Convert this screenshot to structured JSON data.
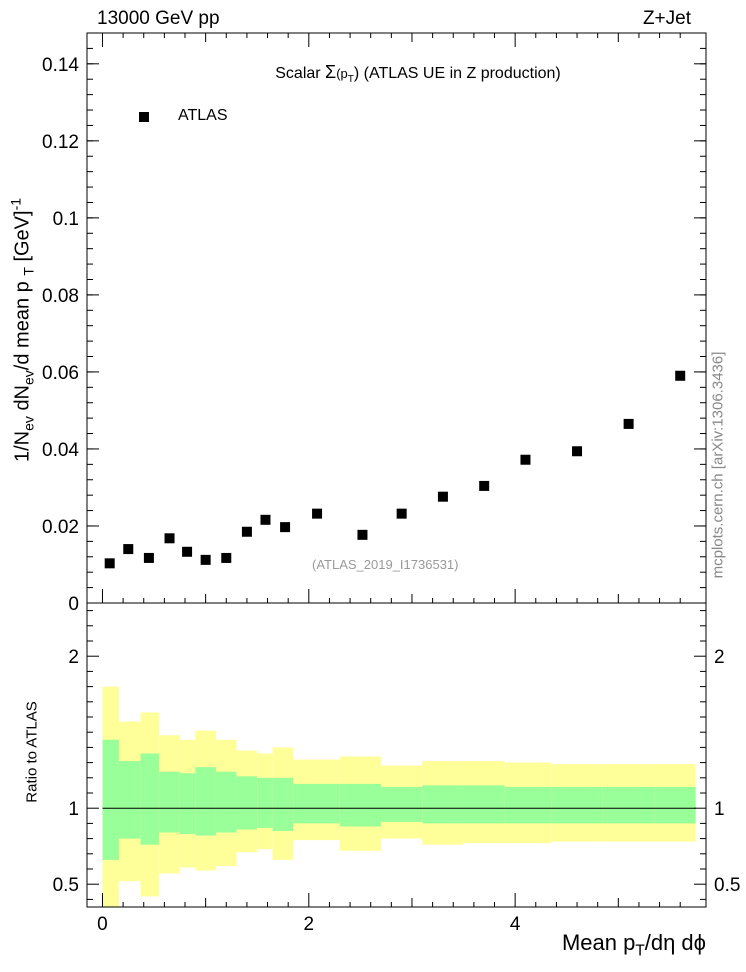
{
  "header": {
    "left": "13000 GeV pp",
    "right": "Z+Jet"
  },
  "legend": {
    "label": "ATLAS",
    "marker": "filled-square"
  },
  "watermark": "(ATLAS_2019_I1736531)",
  "side_credit": "mcplots.cern.ch [arXiv:1306.3436]",
  "colors": {
    "inner_band": "#99ff99",
    "outer_band": "#ffff99",
    "marker": "#000000"
  },
  "chart_data": [
    {
      "type": "scatter",
      "title": "Scalar Σ(pT) (ATLAS UE in Z production)",
      "title_parts": {
        "pre": "Scalar ",
        "sigma": "Σ",
        "p": "(p",
        "sub": "T",
        "post": ") (ATLAS UE in Z production)"
      },
      "xlabel": "Mean pT/dη dϕ",
      "ylabel": "1/Nev dNev/d mean pT [GeV]-1",
      "xlim": [
        -0.15,
        5.85
      ],
      "ylim": [
        0,
        0.148
      ],
      "y_ticks": [
        0,
        0.02,
        0.04,
        0.06,
        0.08,
        0.1,
        0.12,
        0.14
      ],
      "y_tick_labels": [
        "0",
        "0.02",
        "0.04",
        "0.06",
        "0.08",
        "0.1",
        "0.12",
        "0.14"
      ],
      "series": [
        {
          "name": "ATLAS",
          "x": [
            0.07,
            0.25,
            0.45,
            0.65,
            0.82,
            1.0,
            1.2,
            1.4,
            1.58,
            1.77,
            2.08,
            2.52,
            2.9,
            3.3,
            3.7,
            4.1,
            4.6,
            5.1,
            5.6
          ],
          "y": [
            0.0103,
            0.014,
            0.0117,
            0.0168,
            0.0133,
            0.0112,
            0.0117,
            0.0185,
            0.0216,
            0.0197,
            0.0232,
            0.0177,
            0.0232,
            0.0276,
            0.0304,
            0.0372,
            0.0394,
            0.0465,
            0.059
          ]
        }
      ]
    },
    {
      "type": "area",
      "title": "",
      "xlabel": "Mean pT/dη dϕ",
      "ylabel": "Ratio to ATLAS",
      "xlim": [
        -0.15,
        5.85
      ],
      "ylim": [
        0.35,
        2.35
      ],
      "x_ticks": [
        0,
        2,
        4
      ],
      "x_tick_labels": [
        "0",
        "2",
        "4"
      ],
      "y_ticks": [
        0.5,
        1,
        2
      ],
      "y_tick_labels": [
        "0.5",
        "1",
        "2"
      ],
      "reference_line": 1,
      "bins": [
        {
          "xlo": 0.0,
          "xhi": 0.16,
          "outer": [
            0.3,
            1.8
          ],
          "inner": [
            0.66,
            1.45
          ]
        },
        {
          "xlo": 0.16,
          "xhi": 0.37,
          "outer": [
            0.52,
            1.57
          ],
          "inner": [
            0.8,
            1.31
          ]
        },
        {
          "xlo": 0.37,
          "xhi": 0.55,
          "outer": [
            0.42,
            1.63
          ],
          "inner": [
            0.76,
            1.36
          ]
        },
        {
          "xlo": 0.55,
          "xhi": 0.75,
          "outer": [
            0.57,
            1.48
          ],
          "inner": [
            0.84,
            1.24
          ]
        },
        {
          "xlo": 0.75,
          "xhi": 0.9,
          "outer": [
            0.61,
            1.45
          ],
          "inner": [
            0.83,
            1.23
          ]
        },
        {
          "xlo": 0.9,
          "xhi": 1.1,
          "outer": [
            0.59,
            1.51
          ],
          "inner": [
            0.82,
            1.27
          ]
        },
        {
          "xlo": 1.1,
          "xhi": 1.3,
          "outer": [
            0.62,
            1.45
          ],
          "inner": [
            0.84,
            1.24
          ]
        },
        {
          "xlo": 1.3,
          "xhi": 1.5,
          "outer": [
            0.71,
            1.38
          ],
          "inner": [
            0.86,
            1.21
          ]
        },
        {
          "xlo": 1.5,
          "xhi": 1.65,
          "outer": [
            0.73,
            1.36
          ],
          "inner": [
            0.87,
            1.2
          ]
        },
        {
          "xlo": 1.65,
          "xhi": 1.85,
          "outer": [
            0.66,
            1.4
          ],
          "inner": [
            0.85,
            1.2
          ]
        },
        {
          "xlo": 1.85,
          "xhi": 2.3,
          "outer": [
            0.79,
            1.32
          ],
          "inner": [
            0.9,
            1.16
          ]
        },
        {
          "xlo": 2.3,
          "xhi": 2.7,
          "outer": [
            0.72,
            1.34
          ],
          "inner": [
            0.88,
            1.16
          ]
        },
        {
          "xlo": 2.7,
          "xhi": 3.1,
          "outer": [
            0.8,
            1.28
          ],
          "inner": [
            0.91,
            1.14
          ]
        },
        {
          "xlo": 3.1,
          "xhi": 3.5,
          "outer": [
            0.76,
            1.31
          ],
          "inner": [
            0.9,
            1.15
          ]
        },
        {
          "xlo": 3.5,
          "xhi": 3.9,
          "outer": [
            0.77,
            1.31
          ],
          "inner": [
            0.9,
            1.15
          ]
        },
        {
          "xlo": 3.9,
          "xhi": 4.35,
          "outer": [
            0.77,
            1.3
          ],
          "inner": [
            0.9,
            1.14
          ]
        },
        {
          "xlo": 4.35,
          "xhi": 4.85,
          "outer": [
            0.78,
            1.29
          ],
          "inner": [
            0.9,
            1.14
          ]
        },
        {
          "xlo": 4.85,
          "xhi": 5.35,
          "outer": [
            0.78,
            1.29
          ],
          "inner": [
            0.9,
            1.14
          ]
        },
        {
          "xlo": 5.35,
          "xhi": 5.75,
          "outer": [
            0.78,
            1.29
          ],
          "inner": [
            0.9,
            1.14
          ]
        }
      ]
    }
  ]
}
